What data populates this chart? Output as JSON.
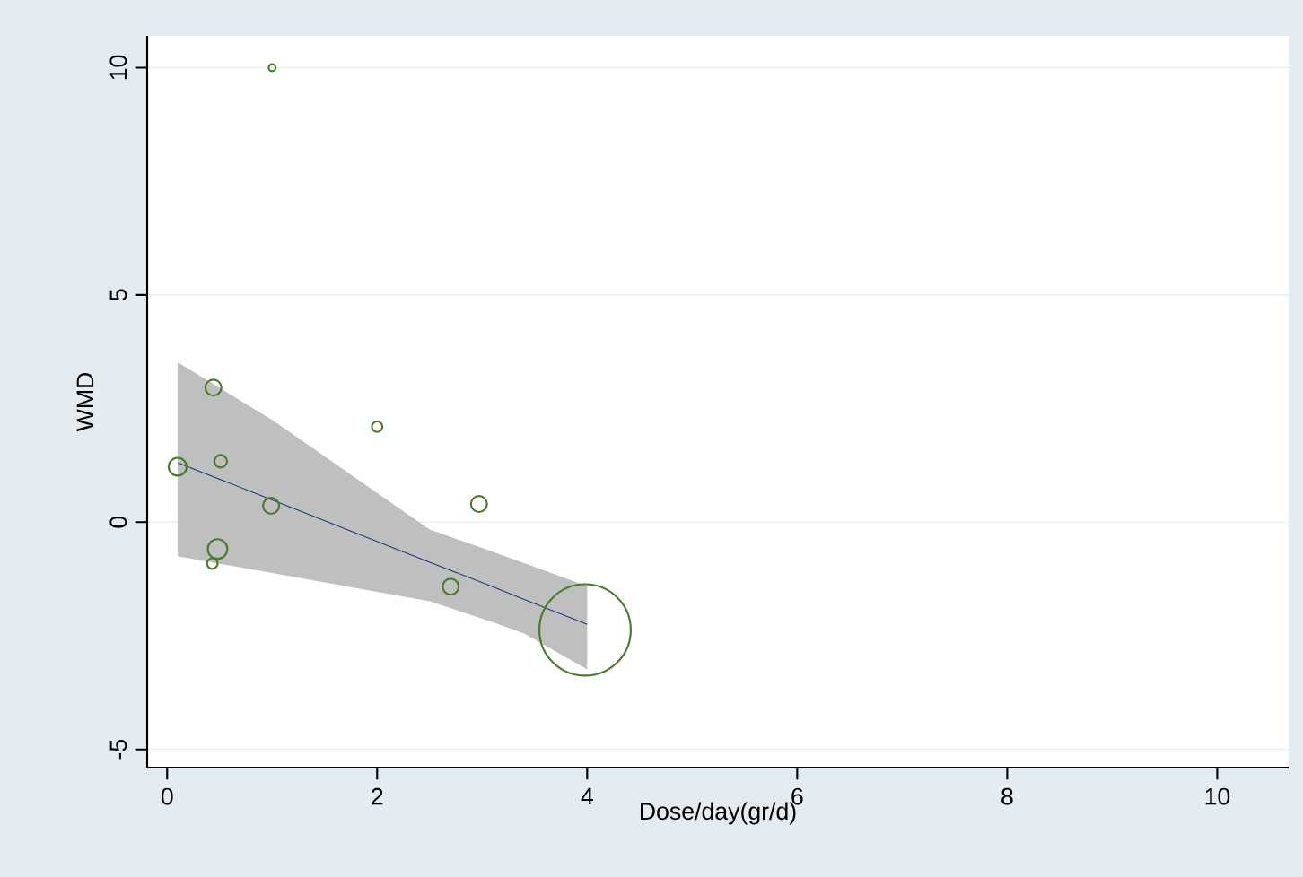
{
  "chart_data": {
    "type": "bubble",
    "xlabel": "Dose/day(gr/d)",
    "ylabel": "WMD",
    "xlim": [
      -0.19,
      10.68
    ],
    "ylim": [
      -5.4,
      10.7
    ],
    "xticks": [
      0,
      2,
      4,
      6,
      8,
      10
    ],
    "yticks": [
      -5,
      0,
      5,
      10
    ],
    "grid": "y",
    "series": [
      {
        "marker": "circle",
        "color": "#4a7a2a",
        "x": [
          0.1,
          0.44,
          0.51,
          0.43,
          0.48,
          1.0,
          0.99,
          2.0,
          2.97,
          2.7,
          3.98
        ],
        "values": [
          1.22,
          2.96,
          1.34,
          -0.91,
          -0.59,
          10.0,
          0.36,
          2.1,
          0.4,
          -1.42,
          -2.37
        ],
        "sizes": [
          0.045,
          0.037,
          0.024,
          0.018,
          0.053,
          0.009,
          0.037,
          0.018,
          0.037,
          0.037,
          1
        ]
      },
      {
        "type": "line",
        "color": "#1a3a7a",
        "x": [
          0.1,
          1.0,
          2.5,
          3.1,
          3.4,
          4.0
        ],
        "values": [
          1.31,
          0.49,
          -0.88,
          -1.42,
          -1.7,
          -2.25
        ],
        "lower": [
          -0.75,
          -1.12,
          -1.74,
          -2.2,
          -2.45,
          -3.24
        ],
        "upper": [
          3.52,
          2.25,
          -0.16,
          -0.65,
          -0.9,
          -1.41
        ]
      }
    ]
  }
}
